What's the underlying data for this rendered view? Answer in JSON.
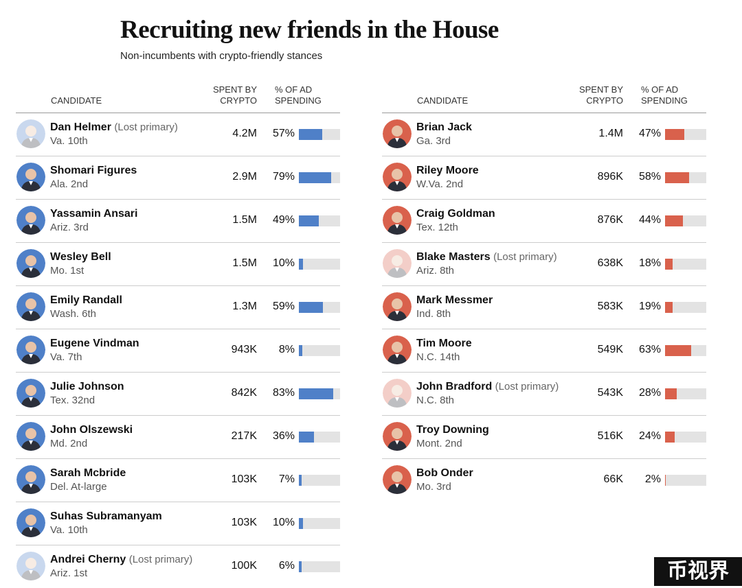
{
  "title": "Recruiting new friends in the House",
  "subtitle": "Non-incumbents with crypto-friendly stances",
  "headers": {
    "candidate": "CANDIDATE",
    "spent_line1": "SPENT BY",
    "spent_line2": "CRYPTO",
    "pct_line1": "% OF AD",
    "pct_line2": "SPENDING"
  },
  "colors": {
    "democrat": "#4f80c8",
    "republican": "#d9614c",
    "bar_track": "#e3e3e3"
  },
  "watermark": "币视界",
  "chart_data": [
    {
      "type": "table",
      "party_color": "#4f80c8",
      "columns": [
        "CANDIDATE",
        "SPENT BY CRYPTO",
        "% OF AD SPENDING"
      ],
      "rows": [
        {
          "name": "Dan Helmer",
          "note": "(Lost primary)",
          "district": "Va. 10th",
          "spent": "4.2M",
          "pct_label": "57%",
          "pct": 57
        },
        {
          "name": "Shomari Figures",
          "note": "",
          "district": "Ala. 2nd",
          "spent": "2.9M",
          "pct_label": "79%",
          "pct": 79
        },
        {
          "name": "Yassamin Ansari",
          "note": "",
          "district": "Ariz. 3rd",
          "spent": "1.5M",
          "pct_label": "49%",
          "pct": 49
        },
        {
          "name": "Wesley Bell",
          "note": "",
          "district": "Mo. 1st",
          "spent": "1.5M",
          "pct_label": "10%",
          "pct": 10
        },
        {
          "name": "Emily Randall",
          "note": "",
          "district": "Wash. 6th",
          "spent": "1.3M",
          "pct_label": "59%",
          "pct": 59
        },
        {
          "name": "Eugene Vindman",
          "note": "",
          "district": "Va. 7th",
          "spent": "943K",
          "pct_label": "8%",
          "pct": 8
        },
        {
          "name": "Julie Johnson",
          "note": "",
          "district": "Tex. 32nd",
          "spent": "842K",
          "pct_label": "83%",
          "pct": 83
        },
        {
          "name": "John Olszewski",
          "note": "",
          "district": "Md. 2nd",
          "spent": "217K",
          "pct_label": "36%",
          "pct": 36
        },
        {
          "name": "Sarah Mcbride",
          "note": "",
          "district": "Del. At-large",
          "spent": "103K",
          "pct_label": "7%",
          "pct": 7
        },
        {
          "name": "Suhas Subramanyam",
          "note": "",
          "district": "Va. 10th",
          "spent": "103K",
          "pct_label": "10%",
          "pct": 10
        },
        {
          "name": "Andrei Cherny",
          "note": "(Lost primary)",
          "district": "Ariz. 1st",
          "spent": "100K",
          "pct_label": "6%",
          "pct": 6
        }
      ]
    },
    {
      "type": "table",
      "party_color": "#d9614c",
      "columns": [
        "CANDIDATE",
        "SPENT BY CRYPTO",
        "% OF AD SPENDING"
      ],
      "rows": [
        {
          "name": "Brian Jack",
          "note": "",
          "district": "Ga. 3rd",
          "spent": "1.4M",
          "pct_label": "47%",
          "pct": 47
        },
        {
          "name": "Riley Moore",
          "note": "",
          "district": "W.Va. 2nd",
          "spent": "896K",
          "pct_label": "58%",
          "pct": 58
        },
        {
          "name": "Craig Goldman",
          "note": "",
          "district": "Tex. 12th",
          "spent": "876K",
          "pct_label": "44%",
          "pct": 44
        },
        {
          "name": "Blake Masters",
          "note": "(Lost primary)",
          "district": "Ariz. 8th",
          "spent": "638K",
          "pct_label": "18%",
          "pct": 18
        },
        {
          "name": "Mark Messmer",
          "note": "",
          "district": "Ind. 8th",
          "spent": "583K",
          "pct_label": "19%",
          "pct": 19
        },
        {
          "name": "Tim Moore",
          "note": "",
          "district": "N.C. 14th",
          "spent": "549K",
          "pct_label": "63%",
          "pct": 63
        },
        {
          "name": "John Bradford",
          "note": "(Lost primary)",
          "district": "N.C. 8th",
          "spent": "543K",
          "pct_label": "28%",
          "pct": 28
        },
        {
          "name": "Troy Downing",
          "note": "",
          "district": "Mont. 2nd",
          "spent": "516K",
          "pct_label": "24%",
          "pct": 24
        },
        {
          "name": "Bob Onder",
          "note": "",
          "district": "Mo. 3rd",
          "spent": "66K",
          "pct_label": "2%",
          "pct": 2
        }
      ]
    }
  ]
}
